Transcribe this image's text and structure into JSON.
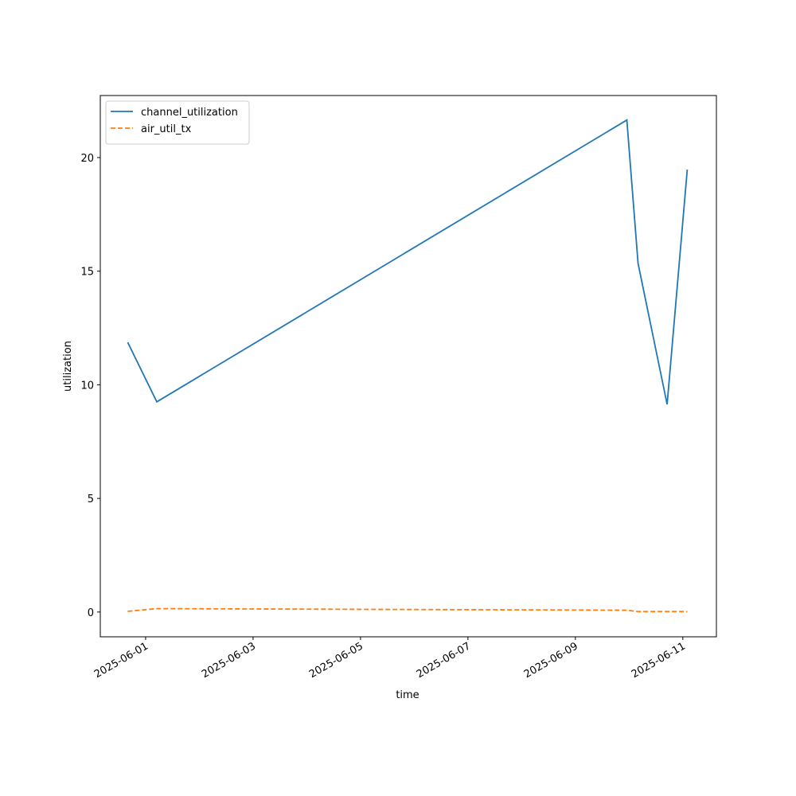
{
  "chart_data": {
    "type": "line",
    "x_label": "time",
    "y_label": "utilization",
    "x": [
      "2025-05-31T16:00",
      "2025-06-01T05:00",
      "2025-06-09T23:00",
      "2025-06-10T04:00",
      "2025-06-10T17:00",
      "2025-06-11T02:00"
    ],
    "series": [
      {
        "name": "channel_utilization",
        "color": "#1f77b4",
        "dash": "solid",
        "values": [
          11.87,
          9.25,
          21.65,
          15.34,
          9.14,
          19.47
        ]
      },
      {
        "name": "air_util_tx",
        "color": "#ff7f0e",
        "dash": "dashed",
        "values": [
          0.03,
          0.15,
          0.08,
          0.02,
          0.02,
          0.02
        ]
      }
    ],
    "xlim": [
      "2025-05-31T03:45",
      "2025-06-11T15:00"
    ],
    "xticks": [
      "2025-06-01",
      "2025-06-03",
      "2025-06-05",
      "2025-06-07",
      "2025-06-09",
      "2025-06-11"
    ],
    "ylim": [
      -1.09,
      22.73
    ],
    "yticks": [
      0,
      5,
      10,
      15,
      20
    ],
    "legend": "upper left",
    "grid": false
  }
}
